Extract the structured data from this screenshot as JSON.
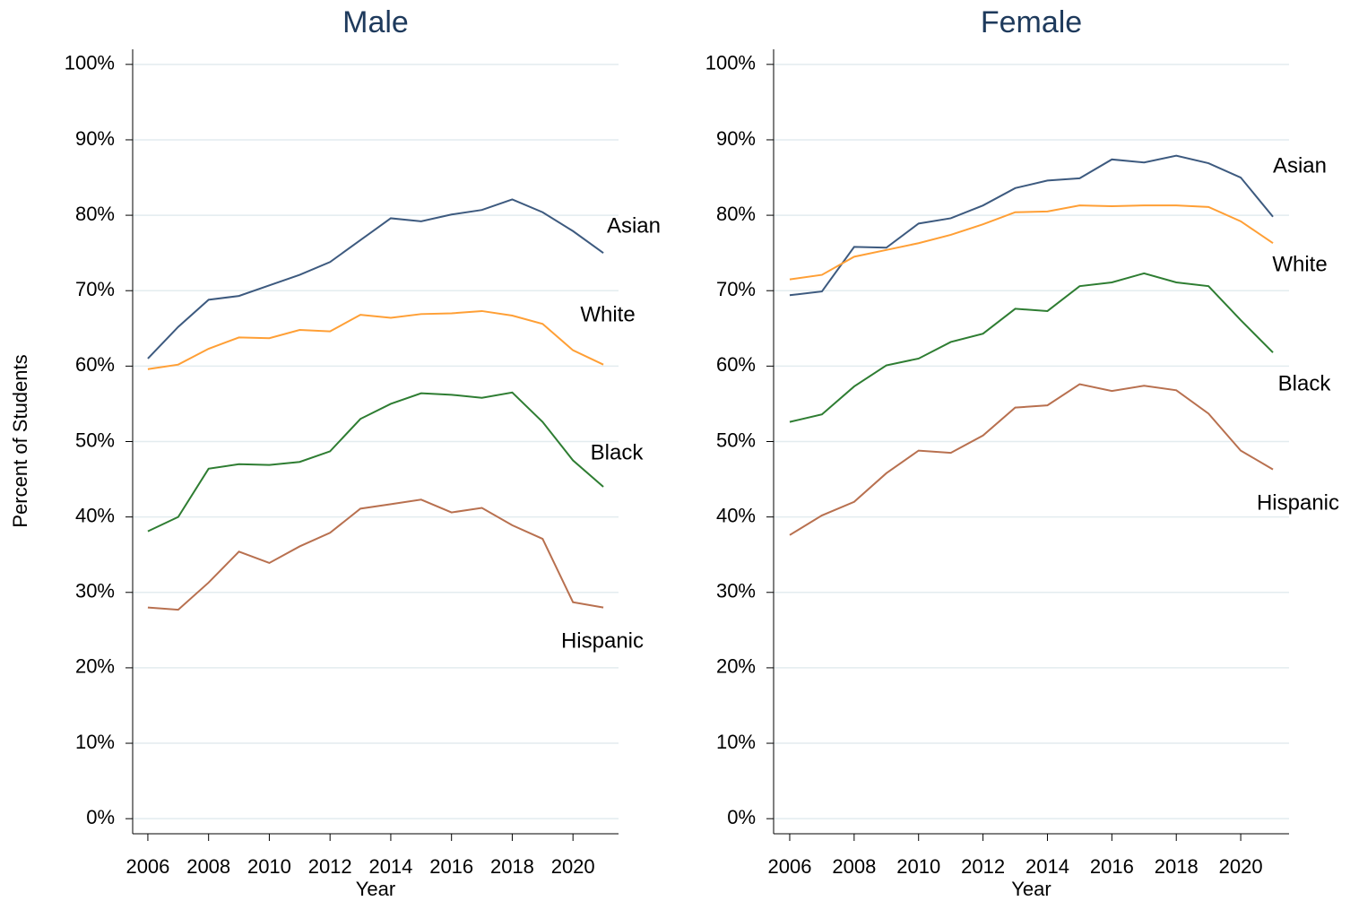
{
  "chart_data": [
    {
      "type": "line",
      "title": "Male",
      "xlabel": "Year",
      "ylabel": "Percent of Students",
      "x": [
        2006,
        2007,
        2008,
        2009,
        2010,
        2011,
        2012,
        2013,
        2014,
        2015,
        2016,
        2017,
        2018,
        2019,
        2020,
        2021
      ],
      "series": [
        {
          "name": "Asian",
          "color": "#3d5a7f",
          "values": [
            61.0,
            65.2,
            68.8,
            69.3,
            70.7,
            72.1,
            73.8,
            76.7,
            79.6,
            79.2,
            80.1,
            80.7,
            82.1,
            80.4,
            77.9,
            75.0
          ]
        },
        {
          "name": "White",
          "color": "#ff9f35",
          "values": [
            59.6,
            60.2,
            62.3,
            63.8,
            63.7,
            64.8,
            64.6,
            66.8,
            66.4,
            66.9,
            67.0,
            67.3,
            66.7,
            65.6,
            62.1,
            60.2
          ]
        },
        {
          "name": "Black",
          "color": "#2e7d32",
          "values": [
            38.1,
            40.0,
            46.4,
            47.0,
            46.9,
            47.3,
            48.7,
            53.0,
            55.0,
            56.4,
            56.2,
            55.8,
            56.5,
            52.6,
            47.5,
            44.0
          ]
        },
        {
          "name": "Hispanic",
          "color": "#b8704f",
          "values": [
            28.0,
            27.7,
            31.3,
            35.4,
            33.9,
            36.1,
            37.9,
            41.1,
            41.7,
            42.3,
            40.6,
            41.2,
            38.9,
            37.1,
            28.7,
            28.0
          ]
        }
      ],
      "xlim": [
        2005.5,
        2021.5
      ],
      "ylim": [
        -2,
        102
      ],
      "xticks": [
        2006,
        2008,
        2010,
        2012,
        2014,
        2016,
        2018,
        2020
      ],
      "yticks": [
        {
          "value": 0,
          "label": "0%"
        },
        {
          "value": 10,
          "label": "10%"
        },
        {
          "value": 20,
          "label": "20%"
        },
        {
          "value": 30,
          "label": "30%"
        },
        {
          "value": 40,
          "label": "40%"
        },
        {
          "value": 50,
          "label": "50%"
        },
        {
          "value": 60,
          "label": "60%"
        },
        {
          "value": 70,
          "label": "70%"
        },
        {
          "value": 80,
          "label": "80%"
        },
        {
          "value": 90,
          "label": "90%"
        },
        {
          "value": 100,
          "label": "100%"
        }
      ],
      "grid": true
    },
    {
      "type": "line",
      "title": "Female",
      "xlabel": "Year",
      "x": [
        2006,
        2007,
        2008,
        2009,
        2010,
        2011,
        2012,
        2013,
        2014,
        2015,
        2016,
        2017,
        2018,
        2019,
        2020,
        2021
      ],
      "series": [
        {
          "name": "Asian",
          "color": "#3d5a7f",
          "values": [
            69.4,
            69.9,
            75.8,
            75.7,
            78.9,
            79.6,
            81.3,
            83.6,
            84.6,
            84.9,
            87.4,
            87.0,
            87.9,
            86.9,
            85.0,
            79.8
          ]
        },
        {
          "name": "White",
          "color": "#ff9f35",
          "values": [
            71.5,
            72.1,
            74.5,
            75.4,
            76.3,
            77.4,
            78.8,
            80.4,
            80.5,
            81.3,
            81.2,
            81.3,
            81.3,
            81.1,
            79.2,
            76.3
          ]
        },
        {
          "name": "Black",
          "color": "#2e7d32",
          "values": [
            52.6,
            53.6,
            57.3,
            60.1,
            61.0,
            63.2,
            64.3,
            67.6,
            67.3,
            70.6,
            71.1,
            72.3,
            71.1,
            70.6,
            66.1,
            61.8
          ]
        },
        {
          "name": "Hispanic",
          "color": "#b8704f",
          "values": [
            37.6,
            40.2,
            42.0,
            45.8,
            48.8,
            48.5,
            50.8,
            54.5,
            54.8,
            57.6,
            56.7,
            57.4,
            56.8,
            53.7,
            48.8,
            46.3
          ]
        }
      ],
      "xlim": [
        2005.5,
        2021.5
      ],
      "ylim": [
        -2,
        102
      ],
      "xticks": [
        2006,
        2008,
        2010,
        2012,
        2014,
        2016,
        2018,
        2020
      ],
      "yticks": [
        {
          "value": 0,
          "label": "0%"
        },
        {
          "value": 10,
          "label": "10%"
        },
        {
          "value": 20,
          "label": "20%"
        },
        {
          "value": 30,
          "label": "30%"
        },
        {
          "value": 40,
          "label": "40%"
        },
        {
          "value": 50,
          "label": "50%"
        },
        {
          "value": 60,
          "label": "60%"
        },
        {
          "value": 70,
          "label": "70%"
        },
        {
          "value": 80,
          "label": "80%"
        },
        {
          "value": 90,
          "label": "90%"
        },
        {
          "value": 100,
          "label": "100%"
        }
      ],
      "grid": true
    }
  ]
}
